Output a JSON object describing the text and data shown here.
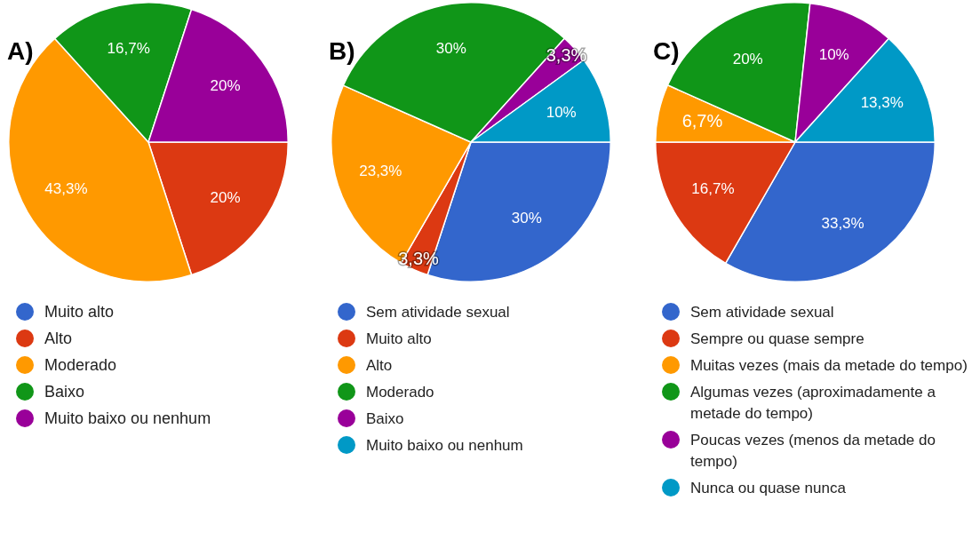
{
  "chart_data": [
    {
      "type": "pie",
      "title": "A)",
      "categories": [
        "Muito alto",
        "Alto",
        "Moderado",
        "Baixo",
        "Muito baixo ou nenhum"
      ],
      "values": [
        0,
        20,
        43.3,
        16.7,
        20
      ],
      "colors": [
        "#3366cc",
        "#dc3912",
        "#ff9900",
        "#109618",
        "#990099"
      ],
      "value_labels": [
        null,
        "20%",
        "43,3%",
        "16,7%",
        "20%"
      ],
      "legend": "bottom"
    },
    {
      "type": "pie",
      "title": "B)",
      "categories": [
        "Sem atividade sexual",
        "Muito alto",
        "Alto",
        "Moderado",
        "Baixo",
        "Muito baixo ou nenhum"
      ],
      "values": [
        30,
        3.3,
        23.3,
        30,
        3.3,
        10
      ],
      "colors": [
        "#3366cc",
        "#dc3912",
        "#ff9900",
        "#109618",
        "#990099",
        "#0099c6"
      ],
      "value_labels": [
        "30%",
        "3,3%",
        "23,3%",
        "30%",
        "3,3%",
        "10%"
      ],
      "legend": "bottom"
    },
    {
      "type": "pie",
      "title": "C)",
      "categories": [
        "Sem atividade sexual",
        "Sempre ou quase sempre",
        "Muitas vezes (mais da metade do tempo)",
        "Algumas vezes (aproximadamente a metade do tempo)",
        "Poucas vezes (menos da metade do tempo)",
        "Nunca ou quase nunca"
      ],
      "values": [
        33.3,
        16.7,
        6.7,
        20,
        10,
        13.3
      ],
      "colors": [
        "#3366cc",
        "#dc3912",
        "#ff9900",
        "#109618",
        "#990099",
        "#0099c6"
      ],
      "value_labels": [
        "33,3%",
        "16,7%",
        "6,7%",
        "20%",
        "10%",
        "13,3%"
      ],
      "legend": "bottom"
    }
  ]
}
